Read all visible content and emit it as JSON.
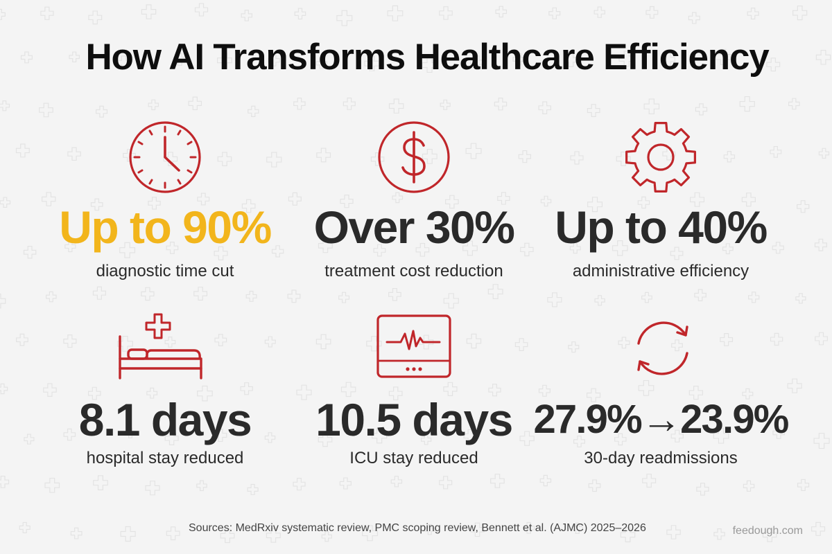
{
  "title": "How AI Transforms Healthcare Efficiency",
  "stats": [
    {
      "icon": "clock-icon",
      "value": "Up to 90%",
      "caption": "diagnostic time cut",
      "highlight": true
    },
    {
      "icon": "dollar-icon",
      "value": "Over 30%",
      "caption": "treatment cost reduction",
      "highlight": false
    },
    {
      "icon": "gear-icon",
      "value": "Up to 40%",
      "caption": "administrative efficiency",
      "highlight": false
    },
    {
      "icon": "hospital-bed-icon",
      "value": "8.1 days",
      "caption": "hospital stay reduced",
      "highlight": false
    },
    {
      "icon": "heart-monitor-icon",
      "value": "10.5 days",
      "caption": "ICU stay reduced",
      "highlight": false
    },
    {
      "icon": "refresh-icon",
      "value": "27.9%→23.9%",
      "caption": "30-day readmissions",
      "highlight": false
    }
  ],
  "colors": {
    "accent": "#c0262a",
    "highlight": "#f2b51c",
    "text": "#2a2a2a",
    "background": "#f4f4f4"
  },
  "sources": "Sources: MedRxiv systematic review, PMC scoping review, Bennett et al. (AJMC) 2025–2026",
  "brand": "feedough.com"
}
